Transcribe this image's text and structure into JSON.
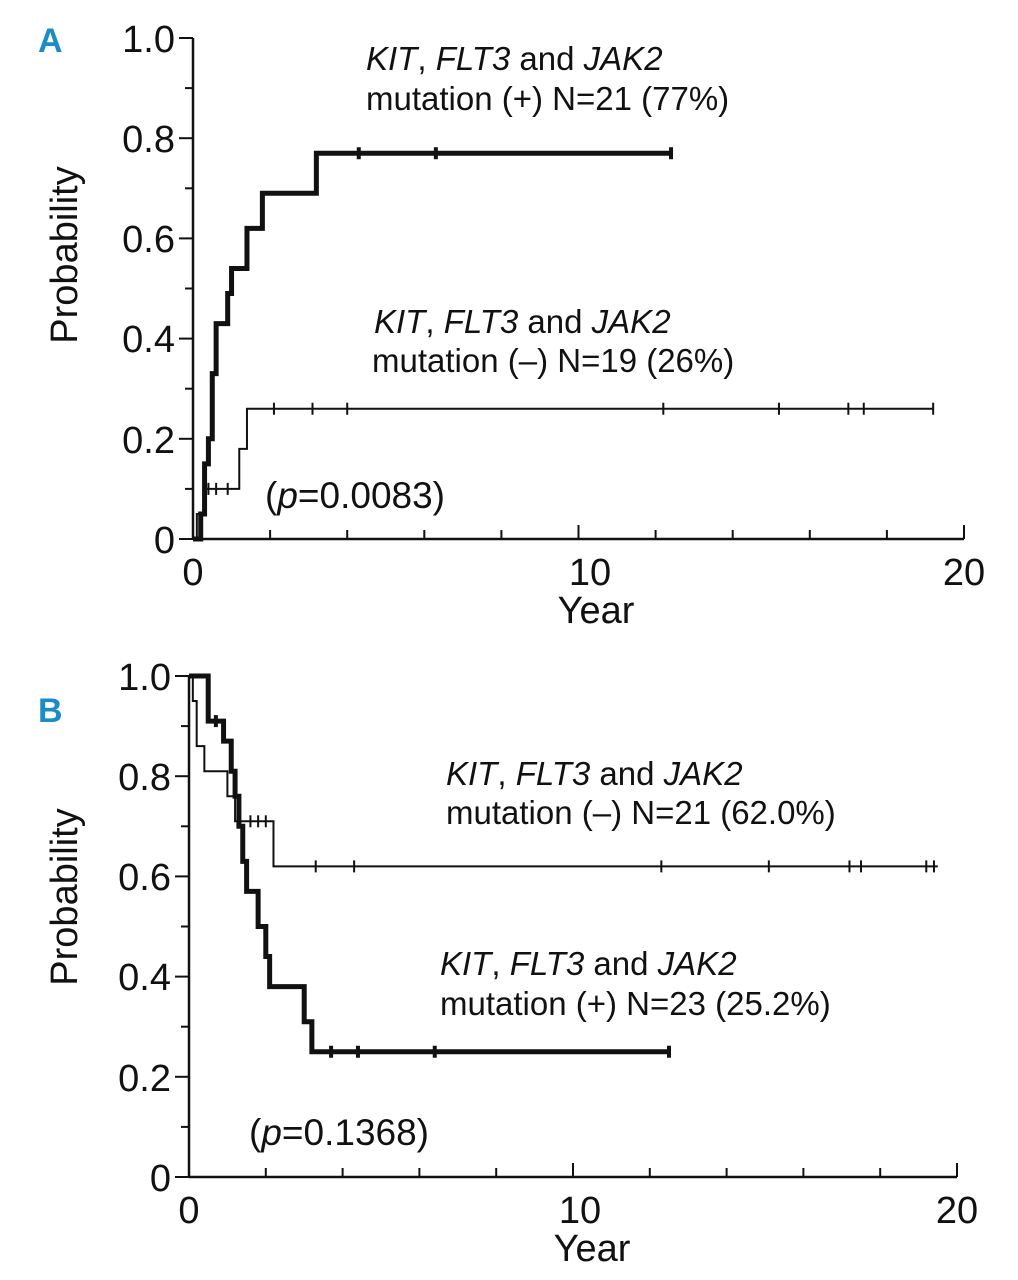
{
  "chart_data": [
    {
      "type": "line",
      "panel": "A",
      "xlabel": "Year",
      "ylabel": "Probability",
      "xlim": [
        0,
        20
      ],
      "ylim": [
        0,
        1.0
      ],
      "xticks": [
        "0",
        "10",
        "20"
      ],
      "yticks": [
        "0",
        "0.2",
        "0.4",
        "0.6",
        "0.8",
        "1.0"
      ],
      "p_value_prefix": "(",
      "p_value_p": "p",
      "p_value_rest": "=0.0083)",
      "series": [
        {
          "name": "KIT, FLT3 and JAK2 mutation (+) N=21 (77%)",
          "label_genes": [
            "KIT",
            "FLT3",
            "JAK2"
          ],
          "label_line2": "mutation (+) N=21 (77%)",
          "weight": "bold",
          "steps": [
            [
              0,
              0
            ],
            [
              0.2,
              0.05
            ],
            [
              0.3,
              0.15
            ],
            [
              0.4,
              0.2
            ],
            [
              0.5,
              0.33
            ],
            [
              0.6,
              0.43
            ],
            [
              0.9,
              0.49
            ],
            [
              1.0,
              0.54
            ],
            [
              1.4,
              0.62
            ],
            [
              1.8,
              0.69
            ],
            [
              3.2,
              0.77
            ],
            [
              12.4,
              0.77
            ]
          ],
          "censor": [
            4.3,
            6.3,
            12.4
          ]
        },
        {
          "name": "KIT, FLT3 and JAK2 mutation (–) N=19 (26%)",
          "label_genes": [
            "KIT",
            "FLT3",
            "JAK2"
          ],
          "label_line2": "mutation (–) N=19 (26%)",
          "weight": "thin",
          "steps": [
            [
              0,
              0
            ],
            [
              0.1,
              0.05
            ],
            [
              0.3,
              0.1
            ],
            [
              1.2,
              0.18
            ],
            [
              1.4,
              0.26
            ],
            [
              19.2,
              0.26
            ]
          ],
          "censor": [
            0.4,
            0.6,
            0.9,
            2.1,
            3.1,
            4.0,
            12.2,
            15.2,
            17.0,
            17.4,
            19.2
          ]
        }
      ]
    },
    {
      "type": "line",
      "panel": "B",
      "xlabel": "Year",
      "ylabel": "Probability",
      "xlim": [
        0,
        20
      ],
      "ylim": [
        0,
        1.0
      ],
      "xticks": [
        "0",
        "10",
        "20"
      ],
      "yticks": [
        "0",
        "0.2",
        "0.4",
        "0.6",
        "0.8",
        "1.0"
      ],
      "p_value_prefix": "(",
      "p_value_p": "p",
      "p_value_rest": "=0.1368)",
      "series": [
        {
          "name": "KIT, FLT3 and JAK2 mutation (–) N=21 (62.0%)",
          "label_genes": [
            "KIT",
            "FLT3",
            "JAK2"
          ],
          "label_line2": "mutation (–) N=21 (62.0%)",
          "weight": "thin",
          "steps": [
            [
              0,
              1.0
            ],
            [
              0.1,
              0.95
            ],
            [
              0.2,
              0.86
            ],
            [
              0.4,
              0.81
            ],
            [
              1.0,
              0.76
            ],
            [
              1.2,
              0.71
            ],
            [
              2.2,
              0.62
            ],
            [
              19.5,
              0.62
            ]
          ],
          "censor": [
            1.6,
            1.8,
            2.0,
            3.3,
            4.3,
            12.3,
            15.1,
            17.2,
            17.5,
            19.2,
            19.4
          ]
        },
        {
          "name": "KIT, FLT3 and JAK2 mutation (+) N=23 (25.2%)",
          "label_genes": [
            "KIT",
            "FLT3",
            "JAK2"
          ],
          "label_line2": "mutation (+) N=23 (25.2%)",
          "weight": "bold",
          "steps": [
            [
              0,
              1.0
            ],
            [
              0.5,
              0.91
            ],
            [
              0.9,
              0.87
            ],
            [
              1.1,
              0.81
            ],
            [
              1.2,
              0.76
            ],
            [
              1.3,
              0.7
            ],
            [
              1.4,
              0.63
            ],
            [
              1.5,
              0.57
            ],
            [
              1.8,
              0.5
            ],
            [
              2.0,
              0.44
            ],
            [
              2.1,
              0.38
            ],
            [
              3.0,
              0.31
            ],
            [
              3.2,
              0.25
            ],
            [
              12.5,
              0.25
            ]
          ],
          "censor": [
            0.7,
            3.7,
            4.4,
            6.4,
            12.5
          ]
        }
      ]
    }
  ]
}
